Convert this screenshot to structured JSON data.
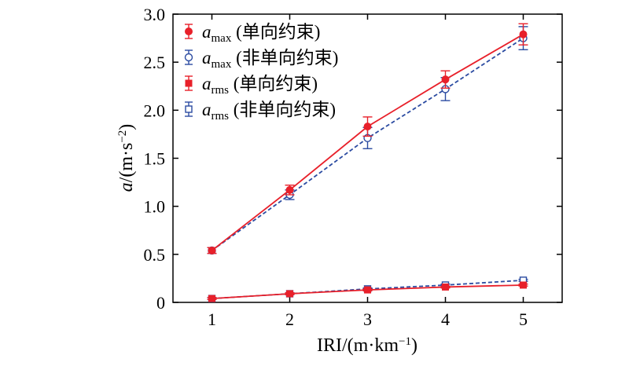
{
  "chart_data": {
    "type": "line",
    "x": [
      1,
      2,
      3,
      4,
      5
    ],
    "xlim": [
      0.5,
      5.5
    ],
    "ylim": [
      0,
      3.0
    ],
    "xticks": [
      "1",
      "2",
      "3",
      "4",
      "5"
    ],
    "yticks": [
      "0",
      "0.5",
      "1.0",
      "1.5",
      "2.0",
      "2.5",
      "3.0"
    ],
    "xlabel": {
      "main": "IRI/(m·km",
      "sup": "−1",
      "end": ")"
    },
    "ylabel": {
      "var": "a",
      "main": "/(m·s",
      "sup": "−2",
      "end": ")"
    },
    "legend_position": "top-left",
    "series": [
      {
        "name": {
          "var": "a",
          "sub": "max",
          "text": " (单向约束)"
        },
        "values": [
          0.54,
          1.17,
          1.83,
          2.32,
          2.79
        ],
        "errors": [
          0.03,
          0.05,
          0.1,
          0.09,
          0.11
        ],
        "color": "#e8202a",
        "marker": "filled-circle",
        "dash": "solid"
      },
      {
        "name": {
          "var": "a",
          "sub": "max",
          "text": " (非单向约束)"
        },
        "values": [
          0.54,
          1.12,
          1.71,
          2.22,
          2.75
        ],
        "errors": [
          0.03,
          0.05,
          0.11,
          0.12,
          0.12
        ],
        "color": "#2b4ba1",
        "marker": "open-circle",
        "dash": "dashed"
      },
      {
        "name": {
          "var": "a",
          "sub": "rms",
          "text": " (单向约束)"
        },
        "values": [
          0.04,
          0.09,
          0.13,
          0.16,
          0.18
        ],
        "errors": [
          0.01,
          0.01,
          0.01,
          0.01,
          0.01
        ],
        "color": "#e8202a",
        "marker": "filled-square",
        "dash": "solid"
      },
      {
        "name": {
          "var": "a",
          "sub": "rms",
          "text": " (非单向约束)"
        },
        "values": [
          0.04,
          0.09,
          0.14,
          0.18,
          0.23
        ],
        "errors": [
          0.01,
          0.01,
          0.01,
          0.01,
          0.01
        ],
        "color": "#2b4ba1",
        "marker": "open-square",
        "dash": "dashed"
      }
    ]
  }
}
